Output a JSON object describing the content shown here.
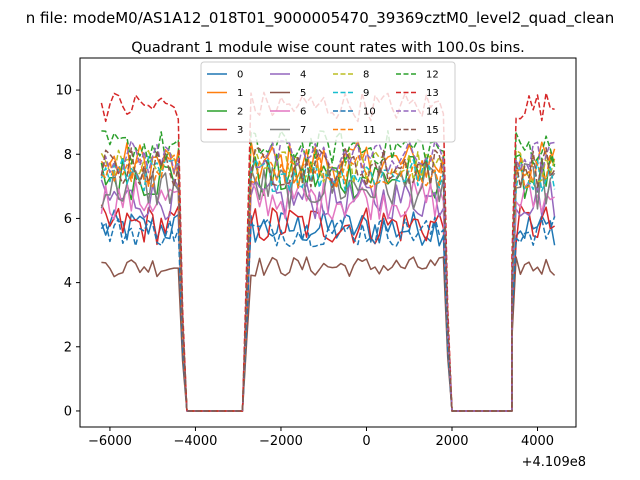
{
  "chart_data": {
    "type": "line",
    "suptitle": "n file: modeM0/AS1A12_018T01_9000005470_39369cztM0_level2_quad_clean",
    "title": "Quadrant 1 module wise count rates with 100.0s bins.",
    "xlabel": "",
    "ylabel": "",
    "x_offset_label": "+4.109e8",
    "xlim": [
      -6700,
      4900
    ],
    "ylim": [
      -0.5,
      11.0
    ],
    "xticks": [
      -6000,
      -4000,
      -2000,
      0,
      2000,
      4000
    ],
    "xtick_labels": [
      "−6000",
      "−4000",
      "−2000",
      "0",
      "2000",
      "4000"
    ],
    "yticks": [
      0,
      2,
      4,
      6,
      8,
      10
    ],
    "ytick_labels": [
      "0",
      "2",
      "4",
      "6",
      "8",
      "10"
    ],
    "legend_position": "upper-center",
    "segments": [
      {
        "start": -6200,
        "end": -4400,
        "step": 100
      },
      {
        "start": -2700,
        "end": 1800,
        "step": 100
      },
      {
        "start": 3500,
        "end": 4400,
        "step": 100
      }
    ],
    "gaps": [
      {
        "from": -4400,
        "to": -2700,
        "zero_start": -4200,
        "zero_end": -2900
      },
      {
        "from": 1800,
        "to": 3500,
        "zero_start": 2000,
        "zero_end": 3400
      }
    ],
    "series": [
      {
        "name": "0",
        "color": "#1f77b4",
        "dash": false,
        "level": 5.7,
        "noise": 0.35
      },
      {
        "name": "1",
        "color": "#ff7f0e",
        "dash": false,
        "level": 7.7,
        "noise": 0.45
      },
      {
        "name": "2",
        "color": "#2ca02c",
        "dash": false,
        "level": 7.3,
        "noise": 0.45
      },
      {
        "name": "3",
        "color": "#d62728",
        "dash": false,
        "level": 5.8,
        "noise": 0.4
      },
      {
        "name": "4",
        "color": "#9467bd",
        "dash": false,
        "level": 6.6,
        "noise": 0.4
      },
      {
        "name": "5",
        "color": "#8c564b",
        "dash": false,
        "level": 4.5,
        "noise": 0.2
      },
      {
        "name": "6",
        "color": "#e377c2",
        "dash": false,
        "level": 6.6,
        "noise": 0.4
      },
      {
        "name": "7",
        "color": "#7f7f7f",
        "dash": false,
        "level": 7.0,
        "noise": 0.45
      },
      {
        "name": "8",
        "color": "#bcbd22",
        "dash": true,
        "level": 7.6,
        "noise": 0.35
      },
      {
        "name": "9",
        "color": "#17becf",
        "dash": true,
        "level": 7.4,
        "noise": 0.35
      },
      {
        "name": "10",
        "color": "#1f77b4",
        "dash": true,
        "level": 5.6,
        "noise": 0.3
      },
      {
        "name": "11",
        "color": "#ff7f0e",
        "dash": true,
        "level": 7.5,
        "noise": 0.35
      },
      {
        "name": "12",
        "color": "#2ca02c",
        "dash": true,
        "level": 8.2,
        "noise": 0.35
      },
      {
        "name": "13",
        "color": "#d62728",
        "dash": true,
        "level": 9.5,
        "noise": 0.3
      },
      {
        "name": "14",
        "color": "#9467bd",
        "dash": true,
        "level": 7.9,
        "noise": 0.35
      },
      {
        "name": "15",
        "color": "#8c564b",
        "dash": true,
        "level": 7.6,
        "noise": 0.4
      }
    ]
  }
}
